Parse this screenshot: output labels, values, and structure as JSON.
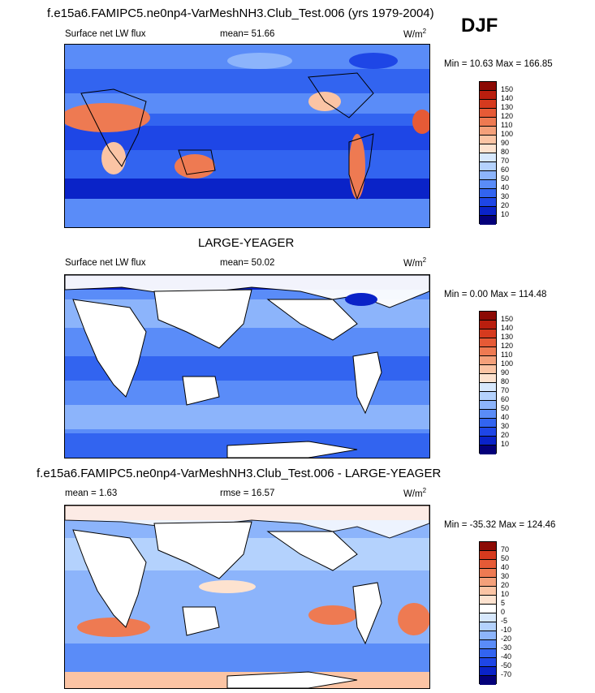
{
  "season": "DJF",
  "colors": {
    "levels_abs": [
      "#04007a",
      "#0a23c8",
      "#1e46e6",
      "#3264f0",
      "#5a8cf8",
      "#8cb4fb",
      "#b4d2fd",
      "#d7e8fd",
      "#fde2cf",
      "#fbc4a4",
      "#f4a07a",
      "#ee7a52",
      "#e65a36",
      "#d63a1e",
      "#b91e0e",
      "#8c0a04"
    ],
    "levels_diff": [
      "#04007a",
      "#0a23c8",
      "#1e46e6",
      "#3264f0",
      "#5a8cf8",
      "#8cb4fb",
      "#b4d2fd",
      "#d7e8fd",
      "#ffffff",
      "#fde2cf",
      "#fbc4a4",
      "#f4a07a",
      "#ee7a52",
      "#e65a36",
      "#d63a1e",
      "#8c0a04"
    ],
    "land": "#ffffff"
  },
  "panels": [
    {
      "title": "f.e15a6.FAMIPC5.ne0np4-VarMeshNH3.Club_Test.006 (yrs 1979-2004)",
      "left_label": "Surface net LW flux",
      "mean_label": "mean=  51.66",
      "units": "W/m",
      "units_sup": "2",
      "minmax": "Min =  10.63 Max = 166.85",
      "cbar_ticks": [
        "150",
        "140",
        "130",
        "120",
        "110",
        "100",
        "90",
        "80",
        "70",
        "60",
        "50",
        "40",
        "30",
        "20",
        "10"
      ]
    },
    {
      "title": "LARGE-YEAGER",
      "left_label": "Surface net LW flux",
      "mean_label": "mean=  50.02",
      "units": "W/m",
      "units_sup": "2",
      "minmax": "Min =   0.00 Max = 114.48",
      "cbar_ticks": [
        "150",
        "140",
        "130",
        "120",
        "110",
        "100",
        "90",
        "80",
        "70",
        "60",
        "50",
        "40",
        "30",
        "20",
        "10"
      ]
    },
    {
      "title": "f.e15a6.FAMIPC5.ne0np4-VarMeshNH3.Club_Test.006 - LARGE-YEAGER",
      "left_label": "mean =   1.63",
      "mean_label": "rmse =  16.57",
      "units": "W/m",
      "units_sup": "2",
      "minmax": "Min = -35.32 Max = 124.46",
      "cbar_ticks": [
        "70",
        "50",
        "40",
        "30",
        "20",
        "10",
        "5",
        "0",
        "-5",
        "-10",
        "-20",
        "-30",
        "-40",
        "-50",
        "-70"
      ]
    }
  ]
}
